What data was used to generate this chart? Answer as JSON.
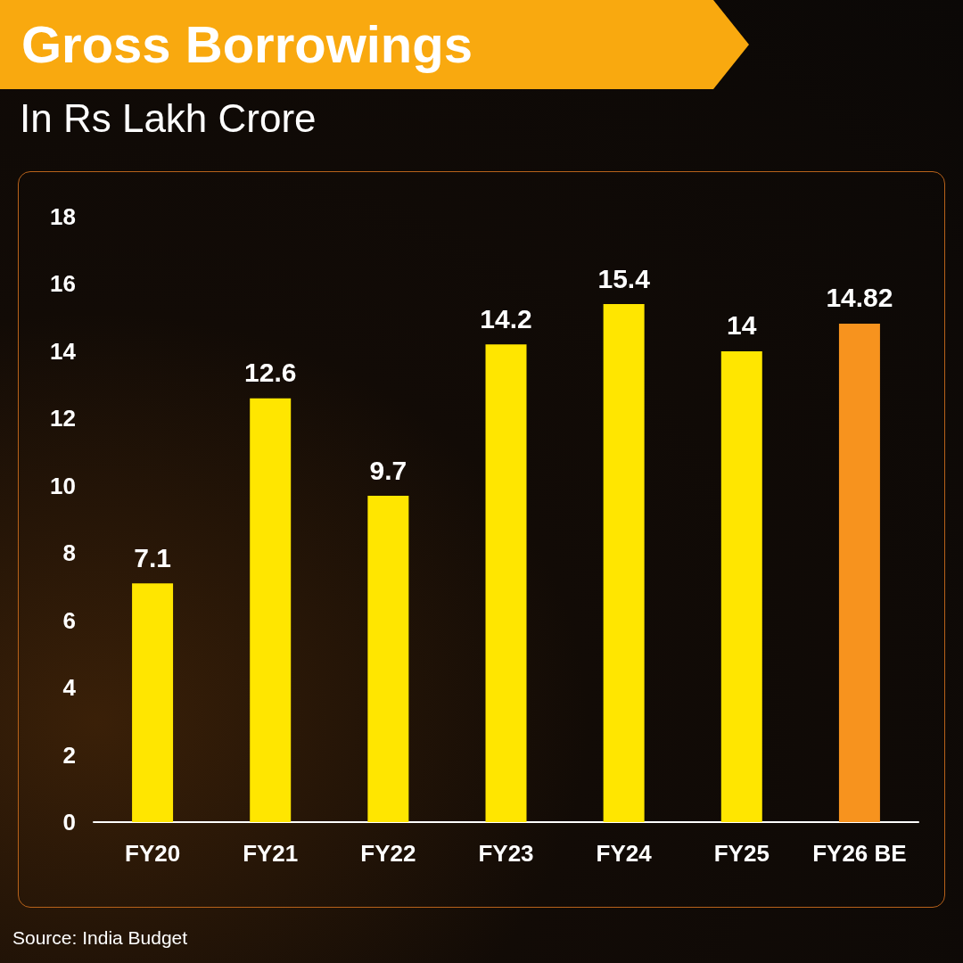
{
  "chart_data": {
    "type": "bar",
    "title": "Gross Borrowings",
    "subtitle": "In Rs Lakh Crore",
    "categories": [
      "FY20",
      "FY21",
      "FY22",
      "FY23",
      "FY24",
      "FY25",
      "FY26 BE"
    ],
    "values": [
      7.1,
      12.6,
      9.7,
      14.2,
      15.4,
      14,
      14.82
    ],
    "colors": [
      "#ffe600",
      "#ffe600",
      "#ffe600",
      "#ffe600",
      "#ffe600",
      "#ffe600",
      "#f7931e"
    ],
    "ylim": [
      0,
      18
    ],
    "yticks": [
      0,
      2,
      4,
      6,
      8,
      10,
      12,
      14,
      16,
      18
    ],
    "data_labels": true,
    "grid": false,
    "annotations": [
      "Source: India Budget"
    ]
  }
}
